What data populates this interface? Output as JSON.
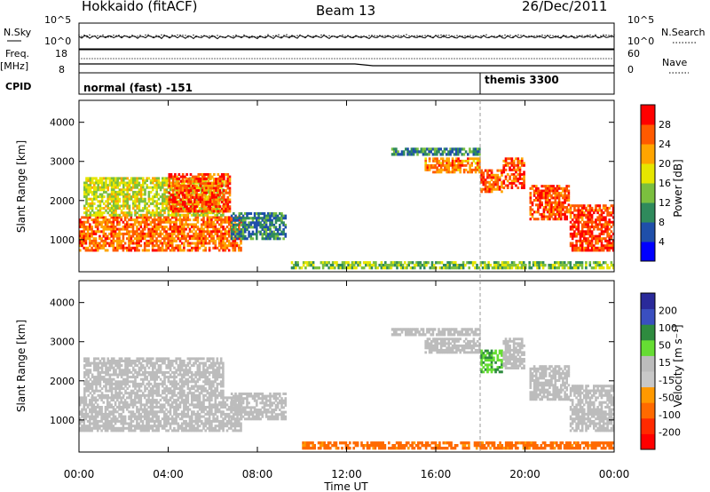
{
  "header": {
    "station": "Hokkaido (fitACF)",
    "beam": "Beam 13",
    "date": "26/Dec/2011"
  },
  "status_panel": {
    "left_labels": {
      "nsky": "N.Sky",
      "freq_top": "Freq.",
      "freq_unit": "[MHz]",
      "cpid": "CPID"
    },
    "right_labels": {
      "nsearch": "N.Search",
      "nave": "Nave"
    },
    "noise_ticks": [
      "10^5",
      "10^0"
    ],
    "freq_ticks": [
      "18",
      "8"
    ],
    "nave_ticks": [
      "60",
      "0"
    ],
    "cpid_segments": [
      {
        "label": "normal (fast) -151",
        "start_hour": 0
      },
      {
        "label": "themis 3300",
        "start_hour": 18
      }
    ]
  },
  "colors": {
    "power_scale": [
      "#0000ff",
      "#1f4faa",
      "#2f8a5c",
      "#7bbf3f",
      "#e6e600",
      "#ffa500",
      "#ff5a00",
      "#ff0000"
    ],
    "velocity_scale": [
      "#2a2a9a",
      "#3a4fc0",
      "#2e8b3f",
      "#66dd33",
      "#bcbcbc",
      "#c8c8c8",
      "#ff9900",
      "#ff6a00",
      "#ff2a00",
      "#ff0000"
    ],
    "ground_scatter": "#bcbcbc"
  },
  "chart_data": [
    {
      "type": "heatmap",
      "name": "power",
      "ylabel": "Slant Range [km]",
      "yticks": [
        "1000",
        "2000",
        "3000",
        "4000"
      ],
      "ylim": [
        180,
        4560
      ],
      "xlim": [
        0,
        24
      ],
      "colorbar_label": "Power [dB]",
      "colorbar_ticks": [
        "4",
        "8",
        "12",
        "16",
        "20",
        "24",
        "28"
      ],
      "colorbar_range": [
        0,
        32
      ],
      "regions": [
        {
          "h0": 0,
          "h1": 7.3,
          "r0": 700,
          "r1": 1600,
          "v": 25
        },
        {
          "h0": 0.2,
          "h1": 6.5,
          "r0": 1600,
          "r1": 2600,
          "v": 17
        },
        {
          "h0": 4,
          "h1": 6.8,
          "r0": 1700,
          "r1": 2700,
          "v": 27
        },
        {
          "h0": 6.8,
          "h1": 9.3,
          "r0": 1000,
          "r1": 1700,
          "v": 9
        },
        {
          "h0": 14,
          "h1": 18,
          "r0": 3150,
          "r1": 3350,
          "v": 10
        },
        {
          "h0": 15.5,
          "h1": 18,
          "r0": 2700,
          "r1": 3100,
          "v": 24
        },
        {
          "h0": 18,
          "h1": 19,
          "r0": 2200,
          "r1": 2800,
          "v": 26
        },
        {
          "h0": 19,
          "h1": 20,
          "r0": 2300,
          "r1": 3100,
          "v": 27
        },
        {
          "h0": 20.2,
          "h1": 22,
          "r0": 1500,
          "r1": 2400,
          "v": 27
        },
        {
          "h0": 22,
          "h1": 24,
          "r0": 700,
          "r1": 1900,
          "v": 28
        },
        {
          "h0": 9.5,
          "h1": 24,
          "r0": 250,
          "r1": 450,
          "v": 14
        }
      ]
    },
    {
      "type": "heatmap",
      "name": "velocity",
      "ylabel": "Slant Range [km]",
      "yticks": [
        "1000",
        "2000",
        "3000",
        "4000"
      ],
      "ylim": [
        180,
        4560
      ],
      "xlim": [
        0,
        24
      ],
      "xticks": [
        "00:00",
        "04:00",
        "08:00",
        "12:00",
        "16:00",
        "20:00",
        "00:00"
      ],
      "xlabel": "Time UT",
      "colorbar_label": "Velocity [m s⁻¹]",
      "colorbar_ticks": [
        "200",
        "100",
        "50",
        "15",
        "-15",
        "-50",
        "-100",
        "-200"
      ],
      "regions": [
        {
          "h0": 0,
          "h1": 7.3,
          "r0": 700,
          "r1": 1600,
          "v": 0
        },
        {
          "h0": 0.2,
          "h1": 6.5,
          "r0": 1600,
          "r1": 2600,
          "v": 0
        },
        {
          "h0": 6.8,
          "h1": 9.3,
          "r0": 1000,
          "r1": 1700,
          "v": 0
        },
        {
          "h0": 14,
          "h1": 18,
          "r0": 3150,
          "r1": 3350,
          "v": 0
        },
        {
          "h0": 15.5,
          "h1": 18,
          "r0": 2700,
          "r1": 3100,
          "v": 0
        },
        {
          "h0": 18,
          "h1": 19,
          "r0": 2200,
          "r1": 2800,
          "v": 30
        },
        {
          "h0": 19,
          "h1": 20,
          "r0": 2300,
          "r1": 3100,
          "v": 0
        },
        {
          "h0": 20.2,
          "h1": 22,
          "r0": 1500,
          "r1": 2400,
          "v": 0
        },
        {
          "h0": 22,
          "h1": 24,
          "r0": 700,
          "r1": 1900,
          "v": 0
        },
        {
          "h0": 10,
          "h1": 24,
          "r0": 250,
          "r1": 450,
          "v": -60
        }
      ]
    }
  ]
}
